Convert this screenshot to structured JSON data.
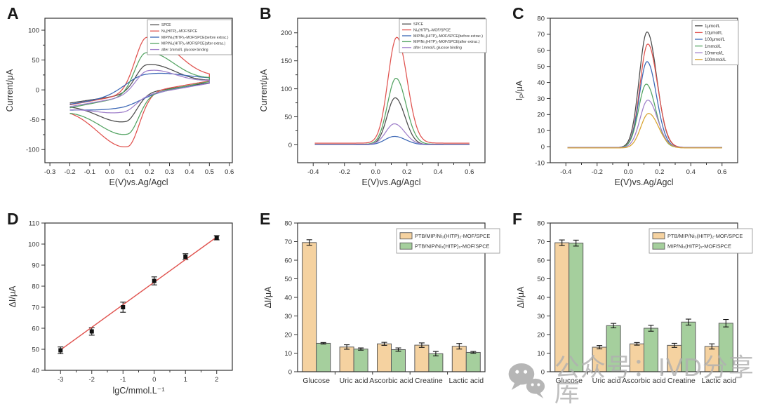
{
  "figure": {
    "background": "#ffffff"
  },
  "panels": {
    "A": {
      "label": "A"
    },
    "B": {
      "label": "B"
    },
    "C": {
      "label": "C"
    },
    "D": {
      "label": "D"
    },
    "E": {
      "label": "E"
    },
    "F": {
      "label": "F"
    }
  },
  "watermark": {
    "icon": "wechat-icon",
    "text": "公众号：IVD分享库",
    "color": "#b0b0b0"
  },
  "chart_data": [
    {
      "id": "A",
      "type": "line",
      "subtype": "cyclic-voltammetry",
      "xlabel": "E(V)vs.Ag/Agcl",
      "ylabel": "Current/μA",
      "xlim": [
        -0.325,
        0.615
      ],
      "ylim": [
        -122,
        120
      ],
      "xticks": [
        -0.3,
        -0.2,
        -0.1,
        0.0,
        0.1,
        0.2,
        0.3,
        0.4,
        0.5,
        0.6
      ],
      "xtick_labels": [
        "-0.3",
        "-0.2",
        "-0.1",
        "0.0",
        "0.1",
        "0.2",
        "0.3",
        "0.4",
        "0.5",
        "0.6"
      ],
      "yticks": [
        -100,
        -50,
        0,
        50,
        100
      ],
      "ytick_labels": [
        "-100",
        "-50",
        "0",
        "50",
        "100"
      ],
      "yminor": [
        -75,
        -25,
        25,
        75
      ],
      "legend_position": "top-right",
      "series": [
        {
          "name": "SPCE",
          "color": "#4a4a4a",
          "cv": {
            "E0": -0.2,
            "E1": 0.5,
            "fwd_base": [
              -22,
              13
            ],
            "rev_base": [
              12,
              -23
            ],
            "Epa": 0.185,
            "Ipa": 42,
            "Epc": 0.08,
            "Ipc": -53,
            "wa": [
              0.055,
              0.14
            ],
            "wc": [
              0.14,
              0.055
            ]
          }
        },
        {
          "name": "Ni₃(HITP)₂-MOF/SPCE",
          "color": "#e0524e",
          "cv": {
            "E0": -0.2,
            "E1": 0.5,
            "fwd_base": [
              -25,
              17
            ],
            "rev_base": [
              15,
              -26
            ],
            "Epa": 0.185,
            "Ipa": 88,
            "Epc": 0.09,
            "Ipc": -95,
            "wa": [
              0.058,
              0.15
            ],
            "wc": [
              0.15,
              0.058
            ]
          }
        },
        {
          "name": "MIP/Ni₃(HITP)₂-MOF/SPCE(before extrac.)",
          "color": "#3a66b5",
          "cv": {
            "E0": -0.2,
            "E1": 0.5,
            "fwd_base": [
              -24,
              12
            ],
            "rev_base": [
              11,
              -26
            ],
            "Epa": 0.18,
            "Ipa": 26,
            "Epc": 0.05,
            "Ipc": -30,
            "wa": [
              0.1,
              0.2
            ],
            "wc": [
              0.2,
              0.1
            ]
          }
        },
        {
          "name": "MIP/Ni₃(HITP)₂-MOF/SPCE(after extrac.)",
          "color": "#53a362",
          "cv": {
            "E0": -0.2,
            "E1": 0.5,
            "fwd_base": [
              -30,
              16
            ],
            "rev_base": [
              14,
              -32
            ],
            "Epa": 0.18,
            "Ipa": 62,
            "Epc": 0.09,
            "Ipc": -74,
            "wa": [
              0.055,
              0.14
            ],
            "wc": [
              0.14,
              0.055
            ]
          }
        },
        {
          "name": "after 1mmol/L glucose binding",
          "color": "#9f7fca",
          "cv": {
            "E0": -0.2,
            "E1": 0.5,
            "fwd_base": [
              -28,
              13
            ],
            "rev_base": [
              11,
              -30
            ],
            "Epa": 0.19,
            "Ipa": 32,
            "Epc": 0.07,
            "Ipc": -37,
            "wa": [
              0.06,
              0.14
            ],
            "wc": [
              0.14,
              0.06
            ]
          }
        }
      ]
    },
    {
      "id": "B",
      "type": "line",
      "subtype": "dpv-peaks",
      "xlabel": "E(V)vs.Ag/Agcl",
      "ylabel": "Current/μA",
      "xlim": [
        -0.5,
        0.7
      ],
      "ylim": [
        -32,
        226
      ],
      "xticks": [
        -0.4,
        -0.2,
        0.0,
        0.2,
        0.4,
        0.6
      ],
      "xtick_labels": [
        "-0.4",
        "-0.2",
        "0.0",
        "0.2",
        "0.4",
        "0.6"
      ],
      "xminor": [
        -0.3,
        -0.1,
        0.1,
        0.3,
        0.5
      ],
      "yticks": [
        0,
        50,
        100,
        150,
        200
      ],
      "ytick_labels": [
        "0",
        "50",
        "100",
        "150",
        "200"
      ],
      "yminor": [
        25,
        75,
        125,
        175
      ],
      "legend_position": "top-right",
      "series": [
        {
          "name": "SPCE",
          "color": "#4a4a4a",
          "peak": {
            "x0": -0.39,
            "x1": 0.6,
            "c": 0.125,
            "h": 84,
            "wl": 0.052,
            "wr": 0.062,
            "base": 0
          }
        },
        {
          "name": "Ni₃(HITP)₂-MOF/SPCE",
          "color": "#e0524e",
          "peak": {
            "x0": -0.39,
            "x1": 0.6,
            "c": 0.135,
            "h": 189,
            "wl": 0.056,
            "wr": 0.066,
            "base": 3
          }
        },
        {
          "name": "MIP/Ni₃(HITP)₂-MOF/SPCE(before extrac.)",
          "color": "#3a66b5",
          "peak": {
            "x0": -0.39,
            "x1": 0.6,
            "c": 0.12,
            "h": 15,
            "wl": 0.06,
            "wr": 0.072,
            "base": 0
          }
        },
        {
          "name": "MIP/Ni₃(HITP)₂-MOF/SPCE(after extrac.)",
          "color": "#53a362",
          "peak": {
            "x0": -0.39,
            "x1": 0.6,
            "c": 0.13,
            "h": 118,
            "wl": 0.054,
            "wr": 0.064,
            "base": 1
          }
        },
        {
          "name": "after 1mmol/L glucose binding",
          "color": "#9f7fca",
          "peak": {
            "x0": -0.39,
            "x1": 0.6,
            "c": 0.12,
            "h": 37,
            "wl": 0.055,
            "wr": 0.066,
            "base": 0.5
          }
        }
      ]
    },
    {
      "id": "C",
      "type": "line",
      "subtype": "dpv-peaks",
      "xlabel": "E(V)vs.Ag/Agcl",
      "ylabel": "IP/μA",
      "ylabel_parts": [
        {
          "t": "I"
        },
        {
          "t": "P",
          "sub": true
        },
        {
          "t": "/μA"
        }
      ],
      "xlim": [
        -0.5,
        0.7
      ],
      "ylim": [
        -10,
        80
      ],
      "xticks": [
        -0.4,
        -0.2,
        0.0,
        0.2,
        0.4,
        0.6
      ],
      "xtick_labels": [
        "-0.4",
        "-0.2",
        "0.0",
        "0.2",
        "0.4",
        "0.6"
      ],
      "xminor": [
        -0.3,
        -0.1,
        0.1,
        0.3,
        0.5
      ],
      "yticks": [
        -10,
        0,
        10,
        20,
        30,
        40,
        50,
        60,
        70,
        80
      ],
      "ytick_labels": [
        "-10",
        "0",
        "10",
        "20",
        "30",
        "40",
        "50",
        "60",
        "70",
        "80"
      ],
      "legend_position": "top-right",
      "series": [
        {
          "name": "1μmol/L",
          "color": "#4a4a4a",
          "peak": {
            "x0": -0.39,
            "x1": 0.6,
            "c": 0.12,
            "h": 72,
            "wl": 0.05,
            "wr": 0.062,
            "base": -0.5
          }
        },
        {
          "name": "10μmol/L",
          "color": "#e0524e",
          "peak": {
            "x0": -0.39,
            "x1": 0.6,
            "c": 0.125,
            "h": 64.5,
            "wl": 0.05,
            "wr": 0.062,
            "base": -0.5
          }
        },
        {
          "name": "100μmol/L",
          "color": "#3a66b5",
          "peak": {
            "x0": -0.39,
            "x1": 0.6,
            "c": 0.12,
            "h": 53.5,
            "wl": 0.049,
            "wr": 0.06,
            "base": -0.5
          }
        },
        {
          "name": "1mmol/L",
          "color": "#53a362",
          "peak": {
            "x0": -0.39,
            "x1": 0.6,
            "c": 0.115,
            "h": 39.5,
            "wl": 0.049,
            "wr": 0.06,
            "base": -0.5
          }
        },
        {
          "name": "10mmol/L",
          "color": "#9f7fca",
          "peak": {
            "x0": -0.39,
            "x1": 0.6,
            "c": 0.125,
            "h": 29.5,
            "wl": 0.05,
            "wr": 0.062,
            "base": -0.5
          }
        },
        {
          "name": "100mmol/L",
          "color": "#d8a430",
          "peak": {
            "x0": -0.39,
            "x1": 0.6,
            "c": 0.13,
            "h": 21.5,
            "wl": 0.05,
            "wr": 0.064,
            "base": -0.8
          }
        }
      ]
    },
    {
      "id": "D",
      "type": "scatter",
      "subtype": "calibration",
      "xlabel": "lgC/mmol.L⁻¹",
      "ylabel": "ΔI/μA",
      "xlim": [
        -3.5,
        2.5
      ],
      "ylim": [
        40,
        110
      ],
      "xticks": [
        -3,
        -2,
        -1,
        0,
        1,
        2
      ],
      "xtick_labels": [
        "-3",
        "-2",
        "-1",
        "0",
        "1",
        "2"
      ],
      "xminor": [
        -2.5,
        -1.5,
        -0.5,
        0.5,
        1.5
      ],
      "yticks": [
        40,
        50,
        60,
        70,
        80,
        90,
        100,
        110
      ],
      "ytick_labels": [
        "40",
        "50",
        "60",
        "70",
        "80",
        "90",
        "100",
        "110"
      ],
      "points": {
        "x": [
          -3,
          -2,
          -1,
          0,
          1,
          2
        ],
        "y": [
          49.5,
          58.5,
          70.0,
          82.5,
          94.0,
          103.0
        ],
        "yerr": [
          1.6,
          1.8,
          2.4,
          1.9,
          1.4,
          1.0
        ],
        "marker_color": "#111111"
      },
      "fit_line": {
        "x": [
          -3.05,
          2.05
        ],
        "slope": 10.72,
        "intercept": 81.9,
        "color": "#e0524e"
      }
    },
    {
      "id": "E",
      "type": "bar",
      "subtype": "selectivity",
      "xlabel": "",
      "ylabel": "ΔI/μA",
      "ylim": [
        0,
        80
      ],
      "yticks": [
        0,
        10,
        20,
        30,
        40,
        50,
        60,
        70,
        80
      ],
      "ytick_labels": [
        "0",
        "10",
        "20",
        "30",
        "40",
        "50",
        "60",
        "70",
        "80"
      ],
      "categories": [
        "Glucose",
        "Uric acid",
        "Ascorbic acid",
        "Creatine",
        "Lactic acid"
      ],
      "legend_position": "top-right",
      "series": [
        {
          "name": "PTB/MIP/Ni₃(HITP)₂-MOF/SPCE",
          "fill": "#f5d2a0",
          "stroke": "#5a5a5a",
          "values": [
            69.5,
            13.3,
            15.0,
            14.3,
            13.7
          ],
          "errors": [
            1.5,
            1.2,
            0.8,
            1.2,
            1.5
          ]
        },
        {
          "name": "PTB/NIP/Ni₃(HITP)₂-MOF/SPCE",
          "fill": "#a5cf9d",
          "stroke": "#5a5a5a",
          "values": [
            15.3,
            12.2,
            11.9,
            9.7,
            10.4
          ],
          "errors": [
            0.4,
            0.6,
            0.9,
            1.2,
            0.5
          ]
        }
      ]
    },
    {
      "id": "F",
      "type": "bar",
      "subtype": "selectivity",
      "xlabel": "",
      "ylabel": "ΔI/μA",
      "ylim": [
        0,
        80
      ],
      "yticks": [
        0,
        10,
        20,
        30,
        40,
        50,
        60,
        70,
        80
      ],
      "ytick_labels": [
        "0",
        "10",
        "20",
        "30",
        "40",
        "50",
        "60",
        "70",
        "80"
      ],
      "categories": [
        "Glucose",
        "Uric acid",
        "Ascorbic acid",
        "Creatine",
        "Lactic acid"
      ],
      "legend_position": "top-right",
      "series": [
        {
          "name": "PTB/MIP/Ni₃(HITP)₂-MOF/SPCE",
          "fill": "#f5d2a0",
          "stroke": "#5a5a5a",
          "values": [
            69.4,
            13.2,
            15.0,
            14.2,
            13.6
          ],
          "errors": [
            1.5,
            0.9,
            0.7,
            1.1,
            1.4
          ]
        },
        {
          "name": "MIP/Ni₃(HITP)₂-MOF/SPCE",
          "fill": "#a5cf9d",
          "stroke": "#5a5a5a",
          "values": [
            69.2,
            24.8,
            23.4,
            26.7,
            26.1
          ],
          "errors": [
            1.6,
            1.2,
            1.6,
            1.6,
            2.0
          ]
        }
      ]
    }
  ]
}
